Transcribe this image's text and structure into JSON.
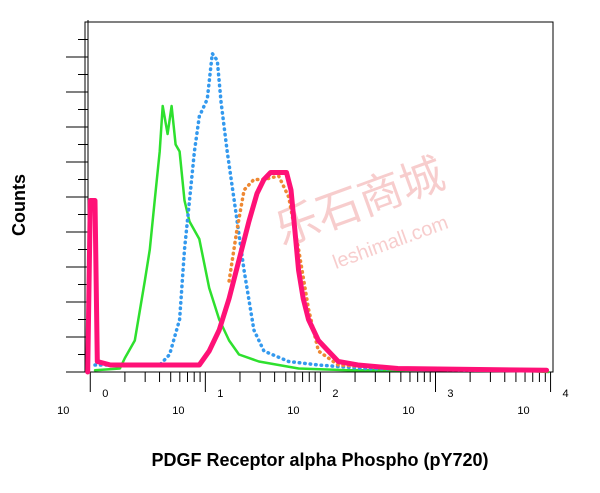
{
  "chart_data": {
    "type": "line",
    "xlabel": "PDGF Receptor alpha Phospho (pY720)",
    "ylabel": "Counts",
    "watermark": [
      "乐石商城",
      "leshimall.com"
    ],
    "xlog": true,
    "xlim": [
      0.9,
      10500
    ],
    "ylim": [
      0,
      100
    ],
    "xticks": [
      {
        "value": 1,
        "label": "10",
        "exponent": "0"
      },
      {
        "value": 10,
        "label": "10",
        "exponent": "1"
      },
      {
        "value": 100,
        "label": "10",
        "exponent": "2"
      },
      {
        "value": 1000,
        "label": "10",
        "exponent": "3"
      },
      {
        "value": 10000,
        "label": "10",
        "exponent": "4"
      }
    ],
    "xminorticks": [
      2,
      3,
      4,
      5,
      6,
      7,
      8,
      9,
      20,
      30,
      40,
      50,
      60,
      70,
      80,
      90,
      200,
      300,
      400,
      500,
      600,
      700,
      800,
      900,
      2000,
      3000,
      4000,
      5000,
      6000,
      7000,
      8000,
      9000
    ],
    "yticks": [
      0,
      5,
      10,
      15,
      20,
      25,
      30,
      35,
      40,
      45,
      50,
      55,
      60,
      65,
      70,
      75,
      80,
      85,
      90,
      95
    ],
    "series": [
      {
        "color": "#2ee02e",
        "style": "solid",
        "width": 2.5,
        "x": [
          1.1,
          1.81,
          2.0,
          2.44,
          2.98,
          3.29,
          3.63,
          4.01,
          4.26,
          4.7,
          5.09,
          5.51,
          5.97,
          6.59,
          7.28,
          8.87,
          10.8,
          13.2,
          16.1,
          19.6,
          29.2,
          43.4,
          64.6,
          174,
          470,
          2300,
          9600
        ],
        "values": [
          0.5,
          1,
          4,
          9,
          26,
          35,
          49,
          63,
          76,
          68,
          76,
          65,
          63,
          49,
          43,
          38,
          24,
          15,
          9,
          5,
          3,
          2,
          1,
          0.5,
          0.5,
          1,
          0
        ]
      },
      {
        "color": "#3399ee",
        "style": "dotted",
        "width": 3.5,
        "x": [
          1.1,
          4.01,
          4.89,
          5.97,
          6.59,
          7.28,
          8.04,
          8.87,
          10.4,
          11.5,
          12.7,
          13.7,
          15.5,
          17.8,
          21.7,
          26.4,
          32.3,
          53,
          96,
          240,
          2300,
          9600
        ],
        "values": [
          2,
          2,
          5,
          15,
          35,
          49,
          63,
          73,
          78,
          91,
          89,
          77,
          63,
          49,
          29,
          12,
          6,
          3,
          2,
          1,
          0.5,
          0.5
        ]
      },
      {
        "color": "#ee8833",
        "style": "dotted",
        "width": 3.5,
        "x": [
          16.1,
          18.7,
          21.7,
          26.4,
          32.3,
          43.4,
          53,
          64.6,
          78.8,
          96.1,
          143,
          470,
          9240
        ],
        "values": [
          26,
          40,
          52,
          55,
          55,
          56,
          50,
          35,
          18,
          6,
          2,
          1,
          0.5
        ]
      },
      {
        "color": "#ff1177",
        "style": "solid",
        "width": 5,
        "x": [
          0.95,
          1.0,
          1.1,
          1.15,
          1.5,
          8.87,
          10.8,
          13.2,
          16.1,
          19.6,
          23.9,
          28.1,
          32.3,
          36.9,
          43.4,
          50.7,
          55.5,
          59.8,
          64.6,
          70.9,
          78.8,
          96.1,
          117,
          143,
          212,
          470,
          9240
        ],
        "values": [
          0,
          49,
          49,
          3,
          2,
          2,
          6,
          12,
          21,
          32,
          43,
          51,
          55,
          57,
          57,
          57,
          52,
          41,
          29,
          21,
          15,
          9,
          6,
          3,
          2,
          1,
          0.5
        ]
      }
    ]
  }
}
